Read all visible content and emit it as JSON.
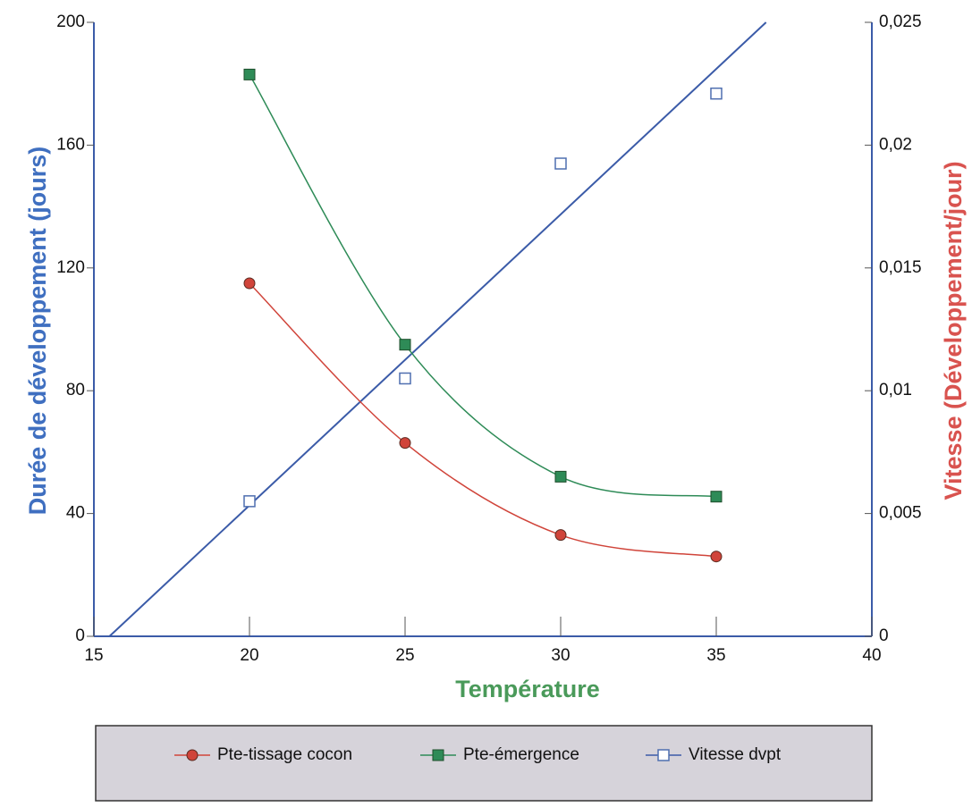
{
  "chart_data": {
    "type": "line",
    "x_label": "Température",
    "y_label": "Durée de développement (jours)",
    "y2_label": "Vitesse (Développement/jour)",
    "x": [
      20,
      25,
      30,
      35
    ],
    "xlim": [
      15,
      40
    ],
    "xticks": [
      15,
      20,
      25,
      30,
      35,
      40
    ],
    "ylim": [
      0,
      200
    ],
    "yticks": [
      0,
      40,
      80,
      120,
      160,
      200
    ],
    "y2lim": [
      0,
      0.025
    ],
    "y2ticks": [
      0,
      {
        "value": 0.005,
        "label": "0,005"
      },
      {
        "value": 0.01,
        "label": "0,01"
      },
      {
        "value": 0.015,
        "label": "0,015"
      },
      {
        "value": 0.02,
        "label": "0,02"
      },
      {
        "value": 0.025,
        "label": "0,025"
      }
    ],
    "series": [
      {
        "name": "Pte-tissage cocon",
        "color": "#d0443a",
        "marker": "circle",
        "line": "smooth",
        "values": [
          115,
          63,
          33,
          26
        ]
      },
      {
        "name": "Pte-émergence",
        "color": "#2e8b57",
        "marker": "square",
        "line": "smooth",
        "values": [
          183,
          95,
          52,
          45.5
        ]
      },
      {
        "name": "Vitesse dvpt",
        "color": "#4f6fb0",
        "marker": "open-square",
        "line": "none",
        "axis": "y2",
        "values": [
          0.0055,
          0.0105,
          0.01925,
          0.0221
        ]
      }
    ],
    "trend_line": {
      "axis": "y2",
      "color": "#3b5ba8",
      "x": [
        15.5,
        36.6
      ],
      "values": [
        0,
        0.025
      ]
    },
    "axis_color": "#3b5ba8",
    "x_label_color": "#4a9a5a",
    "y_label_color": "#3f6fc0",
    "y2_label_color": "#d9534f",
    "legend_position": "bottom",
    "legend_background": "#d6d3da",
    "grid": false
  }
}
